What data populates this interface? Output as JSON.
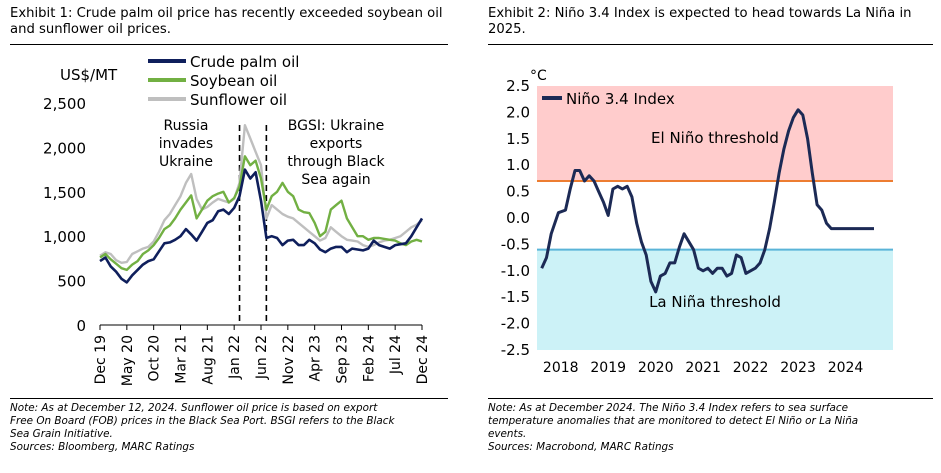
{
  "left": {
    "title_lines": [
      "Exhibit 1: Crude palm oil price has recently exceeded soybean oil",
      "and sunflower oil prices."
    ],
    "note_lines": [
      "Note: As at December 12, 2024. Sunflower oil price is based on export",
      "Free On Board (FOB) prices in the Black Sea Port. BSGI refers to the Black",
      "Sea Grain Initiative.",
      "Sources: Bloomberg, MARC Ratings"
    ]
  },
  "right": {
    "title_lines": [
      "Exhibit 2: Niño 3.4 Index is expected to head towards La Niña in",
      "2025."
    ],
    "note_lines": [
      "Note: As at December 2024. The Niño 3.4 Index refers to sea surface",
      "temperature anomalies that are monitored to detect El Niño or La Niña",
      "events.",
      "Sources: Macrobond, MARC Ratings"
    ]
  },
  "colors": {
    "palm": "#0f1f5c",
    "soy": "#72b043",
    "sun": "#bfbfbf",
    "nino": "#1c2a55",
    "el_zone": "#ffcccc",
    "la_zone": "#ccf2f7",
    "el_line": "#ed7d31",
    "la_line": "#5ab4d8"
  },
  "chart_data": [
    {
      "type": "line",
      "ylabel": "US$/MT",
      "ylim": [
        0,
        2500
      ],
      "yticks": [
        0,
        500,
        1000,
        1500,
        2000,
        2500
      ],
      "ytick_labels": [
        "0",
        "500",
        "1,000",
        "1,500",
        "2,000",
        "2,500"
      ],
      "xlim": [
        "2019-12",
        "2024-12"
      ],
      "xticks": [
        "2019-12",
        "2020-05",
        "2020-10",
        "2021-03",
        "2021-08",
        "2022-01",
        "2022-06",
        "2022-11",
        "2023-04",
        "2023-09",
        "2024-02",
        "2024-07",
        "2024-12"
      ],
      "xtick_labels": [
        "Dec 19",
        "May 20",
        "Oct 20",
        "Mar 21",
        "Aug 21",
        "Jan 22",
        "Jun 22",
        "Nov 22",
        "Apr 23",
        "Sep 23",
        "Feb 24",
        "Jul 24",
        "Dec 24"
      ],
      "legend_position": "top-left",
      "x": [
        "2019-12",
        "2020-01",
        "2020-02",
        "2020-03",
        "2020-04",
        "2020-05",
        "2020-06",
        "2020-07",
        "2020-08",
        "2020-09",
        "2020-10",
        "2020-11",
        "2020-12",
        "2021-01",
        "2021-02",
        "2021-03",
        "2021-04",
        "2021-05",
        "2021-06",
        "2021-07",
        "2021-08",
        "2021-09",
        "2021-10",
        "2021-11",
        "2021-12",
        "2022-01",
        "2022-02",
        "2022-03",
        "2022-04",
        "2022-05",
        "2022-06",
        "2022-07",
        "2022-08",
        "2022-09",
        "2022-10",
        "2022-11",
        "2022-12",
        "2023-01",
        "2023-02",
        "2023-03",
        "2023-04",
        "2023-05",
        "2023-06",
        "2023-07",
        "2023-08",
        "2023-09",
        "2023-10",
        "2023-11",
        "2023-12",
        "2024-01",
        "2024-02",
        "2024-03",
        "2024-04",
        "2024-05",
        "2024-06",
        "2024-07",
        "2024-08",
        "2024-09",
        "2024-10",
        "2024-11",
        "2024-12"
      ],
      "series": [
        {
          "name": "Crude palm oil",
          "color_key": "palm",
          "values": [
            720,
            760,
            660,
            600,
            520,
            480,
            560,
            620,
            680,
            720,
            740,
            830,
            920,
            930,
            960,
            1000,
            1080,
            1020,
            950,
            1050,
            1150,
            1180,
            1280,
            1300,
            1250,
            1320,
            1450,
            1750,
            1650,
            1720,
            1400,
            980,
            1000,
            980,
            900,
            950,
            960,
            900,
            900,
            960,
            920,
            850,
            820,
            860,
            880,
            880,
            820,
            860,
            850,
            840,
            860,
            950,
            900,
            880,
            860,
            900,
            910,
            920,
            1000,
            1100,
            1200
          ]
        },
        {
          "name": "Soybean oil",
          "color_key": "soy",
          "values": [
            760,
            800,
            740,
            690,
            640,
            620,
            680,
            720,
            800,
            840,
            900,
            980,
            1080,
            1120,
            1200,
            1300,
            1380,
            1460,
            1200,
            1300,
            1400,
            1450,
            1480,
            1500,
            1380,
            1430,
            1560,
            1900,
            1800,
            1850,
            1650,
            1300,
            1450,
            1500,
            1600,
            1500,
            1450,
            1300,
            1270,
            1260,
            1150,
            1000,
            1050,
            1300,
            1350,
            1400,
            1200,
            1100,
            1000,
            1000,
            960,
            980,
            980,
            970,
            960,
            950,
            920,
            900,
            940,
            960,
            940
          ]
        },
        {
          "name": "Sunflower oil",
          "color_key": "sun",
          "values": [
            780,
            820,
            800,
            730,
            700,
            710,
            800,
            830,
            860,
            880,
            940,
            1050,
            1180,
            1250,
            1350,
            1450,
            1600,
            1700,
            1420,
            1300,
            1330,
            1380,
            1420,
            1400,
            1380,
            1420,
            1600,
            2250,
            2100,
            1950,
            1800,
            1200,
            1350,
            1300,
            1250,
            1220,
            1200,
            1150,
            1100,
            1050,
            1000,
            950,
            980,
            1100,
            1050,
            1000,
            960,
            950,
            940,
            900,
            880,
            900,
            930,
            950,
            960,
            980,
            1000,
            1050,
            1100,
            1130,
            1180
          ]
        }
      ],
      "annotations": [
        {
          "lines": [
            "Russia",
            "invades",
            "Ukraine"
          ],
          "x": "2022-02"
        },
        {
          "lines": [
            "BGSI: Ukraine",
            "exports",
            "through Black",
            "Sea again"
          ],
          "x": "2022-07"
        }
      ]
    },
    {
      "type": "line",
      "ylabel": "°C",
      "ylim": [
        -2.5,
        2.5
      ],
      "yticks": [
        2.5,
        2.0,
        1.5,
        1.0,
        0.5,
        0.0,
        -0.5,
        -1.0,
        -1.5,
        -2.0,
        -2.5
      ],
      "ytick_labels": [
        "2.5",
        "2.0",
        "1.5",
        "1.0",
        "0.5",
        "0.0",
        "-0.5",
        "-1.0",
        "-1.5",
        "-2.0",
        "-2.5"
      ],
      "xlim": [
        2017.5,
        2025.0
      ],
      "xticks": [
        2018,
        2019,
        2020,
        2021,
        2022,
        2023,
        2024
      ],
      "xtick_labels": [
        "2018",
        "2019",
        "2020",
        "2021",
        "2022",
        "2023",
        "2024"
      ],
      "legend_position": "top-left",
      "thresholds": [
        {
          "label": "El Niño threshold",
          "value": 0.7,
          "color_key": "el_line",
          "zone_color_key": "el_zone"
        },
        {
          "label": "La Niña threshold",
          "value": -0.6,
          "color_key": "la_line",
          "zone_color_key": "la_zone"
        }
      ],
      "series": [
        {
          "name": "Niño 3.4 Index",
          "color_key": "nino",
          "x": [
            2017.6,
            2017.7,
            2017.8,
            2017.95,
            2018.1,
            2018.2,
            2018.3,
            2018.4,
            2018.5,
            2018.6,
            2018.7,
            2018.8,
            2018.9,
            2019.0,
            2019.1,
            2019.2,
            2019.3,
            2019.4,
            2019.5,
            2019.6,
            2019.7,
            2019.8,
            2019.9,
            2020.0,
            2020.1,
            2020.2,
            2020.3,
            2020.4,
            2020.5,
            2020.6,
            2020.7,
            2020.8,
            2020.9,
            2021.0,
            2021.1,
            2021.2,
            2021.3,
            2021.4,
            2021.5,
            2021.6,
            2021.7,
            2021.8,
            2021.9,
            2022.0,
            2022.1,
            2022.2,
            2022.3,
            2022.4,
            2022.5,
            2022.6,
            2022.7,
            2022.8,
            2022.9,
            2023.0,
            2023.1,
            2023.2,
            2023.3,
            2023.4,
            2023.5,
            2023.6,
            2023.7,
            2023.8,
            2023.9,
            2024.0,
            2024.1,
            2024.2,
            2024.3,
            2024.4,
            2024.5,
            2024.6
          ],
          "values": [
            -0.95,
            -0.75,
            -0.3,
            0.1,
            0.15,
            0.55,
            0.9,
            0.9,
            0.7,
            0.8,
            0.7,
            0.5,
            0.3,
            0.05,
            0.55,
            0.6,
            0.55,
            0.6,
            0.4,
            -0.1,
            -0.45,
            -0.7,
            -1.2,
            -1.4,
            -1.1,
            -1.05,
            -0.85,
            -0.85,
            -0.55,
            -0.3,
            -0.45,
            -0.6,
            -0.95,
            -1.0,
            -0.95,
            -1.05,
            -0.95,
            -0.95,
            -1.1,
            -1.05,
            -0.7,
            -0.75,
            -1.05,
            -1.0,
            -0.95,
            -0.85,
            -0.6,
            -0.2,
            0.3,
            0.85,
            1.3,
            1.65,
            1.9,
            2.05,
            1.95,
            1.5,
            0.85,
            0.25,
            0.15,
            -0.1,
            -0.2,
            -0.2,
            -0.2,
            -0.2,
            -0.2,
            -0.2,
            -0.2,
            -0.2,
            -0.2,
            -0.2
          ]
        }
      ]
    }
  ]
}
